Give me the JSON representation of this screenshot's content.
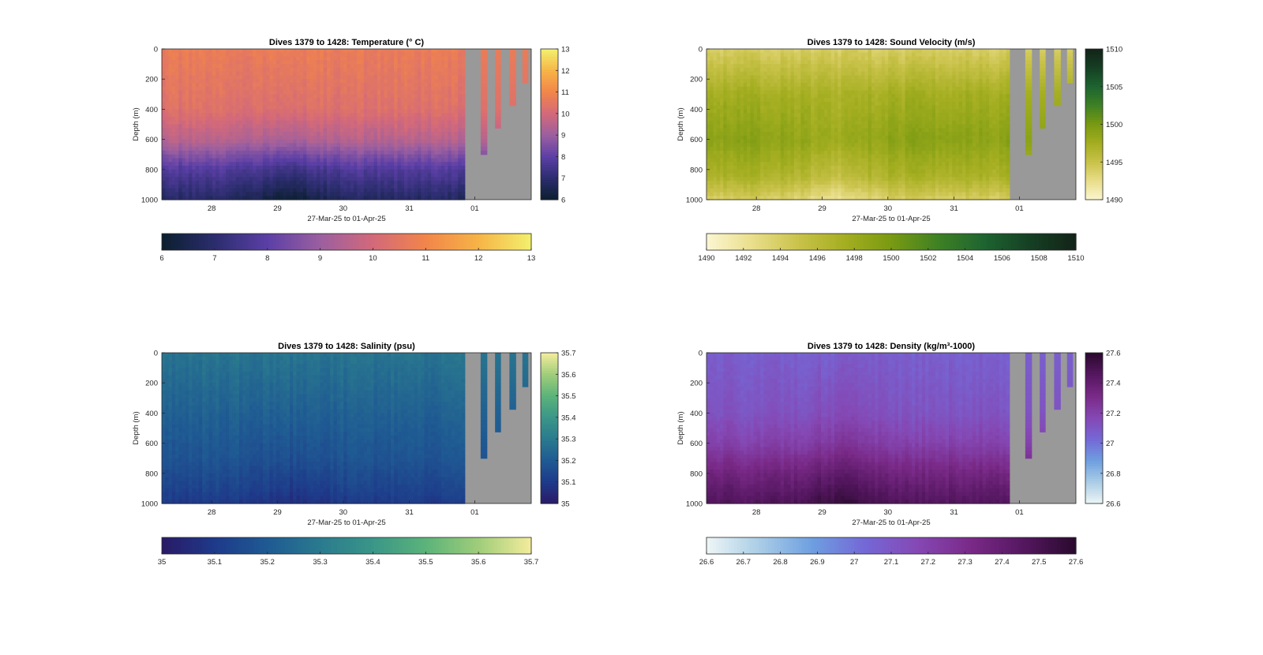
{
  "figure": {
    "xlabel": "27-Mar-25 to 01-Apr-25",
    "ylabel": "Depth (m)",
    "x_ticks": [
      "28",
      "29",
      "30",
      "31",
      "01"
    ],
    "y_ticks": [
      "0",
      "200",
      "400",
      "600",
      "800",
      "1000"
    ]
  },
  "chart_data": [
    {
      "type": "heatmap",
      "title": "Dives 1379 to 1428: Temperature (° C)",
      "variable": "temperature",
      "xlabel": "27-Mar-25 to 01-Apr-25",
      "ylabel": "Depth (m)",
      "x_ticks": [
        "28",
        "29",
        "30",
        "31",
        "01"
      ],
      "ylim": [
        0,
        1000
      ],
      "y_reversed": true,
      "clim": [
        6,
        13
      ],
      "side_colorbar_ticks": [
        "6",
        "7",
        "8",
        "9",
        "10",
        "11",
        "12",
        "13"
      ],
      "bottom_colorbar_ticks": [
        "6",
        "7",
        "8",
        "9",
        "10",
        "11",
        "12",
        "13"
      ],
      "colormap": [
        "#0b1f2e",
        "#2b2d6e",
        "#5b3fa6",
        "#9b5fa0",
        "#d3697a",
        "#f2854a",
        "#f6b447",
        "#f3f06e"
      ],
      "profile": {
        "depth": [
          0,
          400,
          600,
          800,
          1000
        ],
        "value": [
          10.7,
          10.3,
          9.5,
          7.8,
          6.8
        ]
      },
      "missing_color": "#999999"
    },
    {
      "type": "heatmap",
      "title": "Dives 1379 to 1428: Sound Velocity (m/s)",
      "variable": "sound_velocity",
      "xlabel": "27-Mar-25 to 01-Apr-25",
      "ylabel": "Depth (m)",
      "x_ticks": [
        "28",
        "29",
        "30",
        "31",
        "01"
      ],
      "ylim": [
        0,
        1000
      ],
      "y_reversed": true,
      "clim": [
        1490,
        1510
      ],
      "side_colorbar_ticks": [
        "1490",
        "1495",
        "1500",
        "1505",
        "1510"
      ],
      "bottom_colorbar_ticks": [
        "1490",
        "1492",
        "1494",
        "1496",
        "1498",
        "1500",
        "1502",
        "1504",
        "1506",
        "1508",
        "1510"
      ],
      "colormap": [
        "#fbf6d2",
        "#e9de8a",
        "#c9c24a",
        "#a4ae20",
        "#7a9a12",
        "#3f8124",
        "#1e6430",
        "#154024",
        "#132318"
      ],
      "profile": {
        "depth": [
          0,
          300,
          600,
          850,
          1000
        ],
        "value": [
          1494,
          1497.5,
          1499,
          1497,
          1494
        ]
      },
      "missing_color": "#999999"
    },
    {
      "type": "heatmap",
      "title": "Dives 1379 to 1428: Salinity (psu)",
      "variable": "salinity",
      "xlabel": "27-Mar-25 to 01-Apr-25",
      "ylabel": "Depth (m)",
      "x_ticks": [
        "28",
        "29",
        "30",
        "31",
        "01"
      ],
      "ylim": [
        0,
        1000
      ],
      "y_reversed": true,
      "clim": [
        35,
        35.7
      ],
      "side_colorbar_ticks": [
        "35",
        "35.1",
        "35.2",
        "35.3",
        "35.4",
        "35.5",
        "35.6",
        "35.7"
      ],
      "bottom_colorbar_ticks": [
        "35",
        "35.1",
        "35.2",
        "35.3",
        "35.4",
        "35.5",
        "35.6",
        "35.7"
      ],
      "colormap": [
        "#2a1a66",
        "#1e3a8a",
        "#1f5a93",
        "#2a7a8e",
        "#3a9688",
        "#5bb37a",
        "#9fcd7a",
        "#f3ec9c"
      ],
      "profile": {
        "depth": [
          0,
          400,
          700,
          900,
          1000
        ],
        "value": [
          35.28,
          35.22,
          35.18,
          35.13,
          35.1
        ]
      },
      "missing_color": "#999999"
    },
    {
      "type": "heatmap",
      "title": "Dives 1379 to 1428: Density (kg/m³-1000)",
      "variable": "density",
      "xlabel": "27-Mar-25 to 01-Apr-25",
      "ylabel": "Depth (m)",
      "x_ticks": [
        "28",
        "29",
        "30",
        "31",
        "01"
      ],
      "ylim": [
        0,
        1000
      ],
      "y_reversed": true,
      "clim": [
        26.6,
        27.6
      ],
      "side_colorbar_ticks": [
        "26.6",
        "26.8",
        "27",
        "27.2",
        "27.4",
        "27.6"
      ],
      "bottom_colorbar_ticks": [
        "26.6",
        "26.7",
        "26.8",
        "26.9",
        "27",
        "27.1",
        "27.2",
        "27.3",
        "27.4",
        "27.5",
        "27.6"
      ],
      "colormap": [
        "#eef6f6",
        "#aacde6",
        "#6e9fe0",
        "#7468d6",
        "#8548b4",
        "#7a2a88",
        "#551760",
        "#2a0a2e"
      ],
      "profile": {
        "depth": [
          0,
          400,
          600,
          800,
          1000
        ],
        "value": [
          27.07,
          27.12,
          27.2,
          27.35,
          27.47
        ]
      },
      "missing_color": "#999999"
    }
  ]
}
